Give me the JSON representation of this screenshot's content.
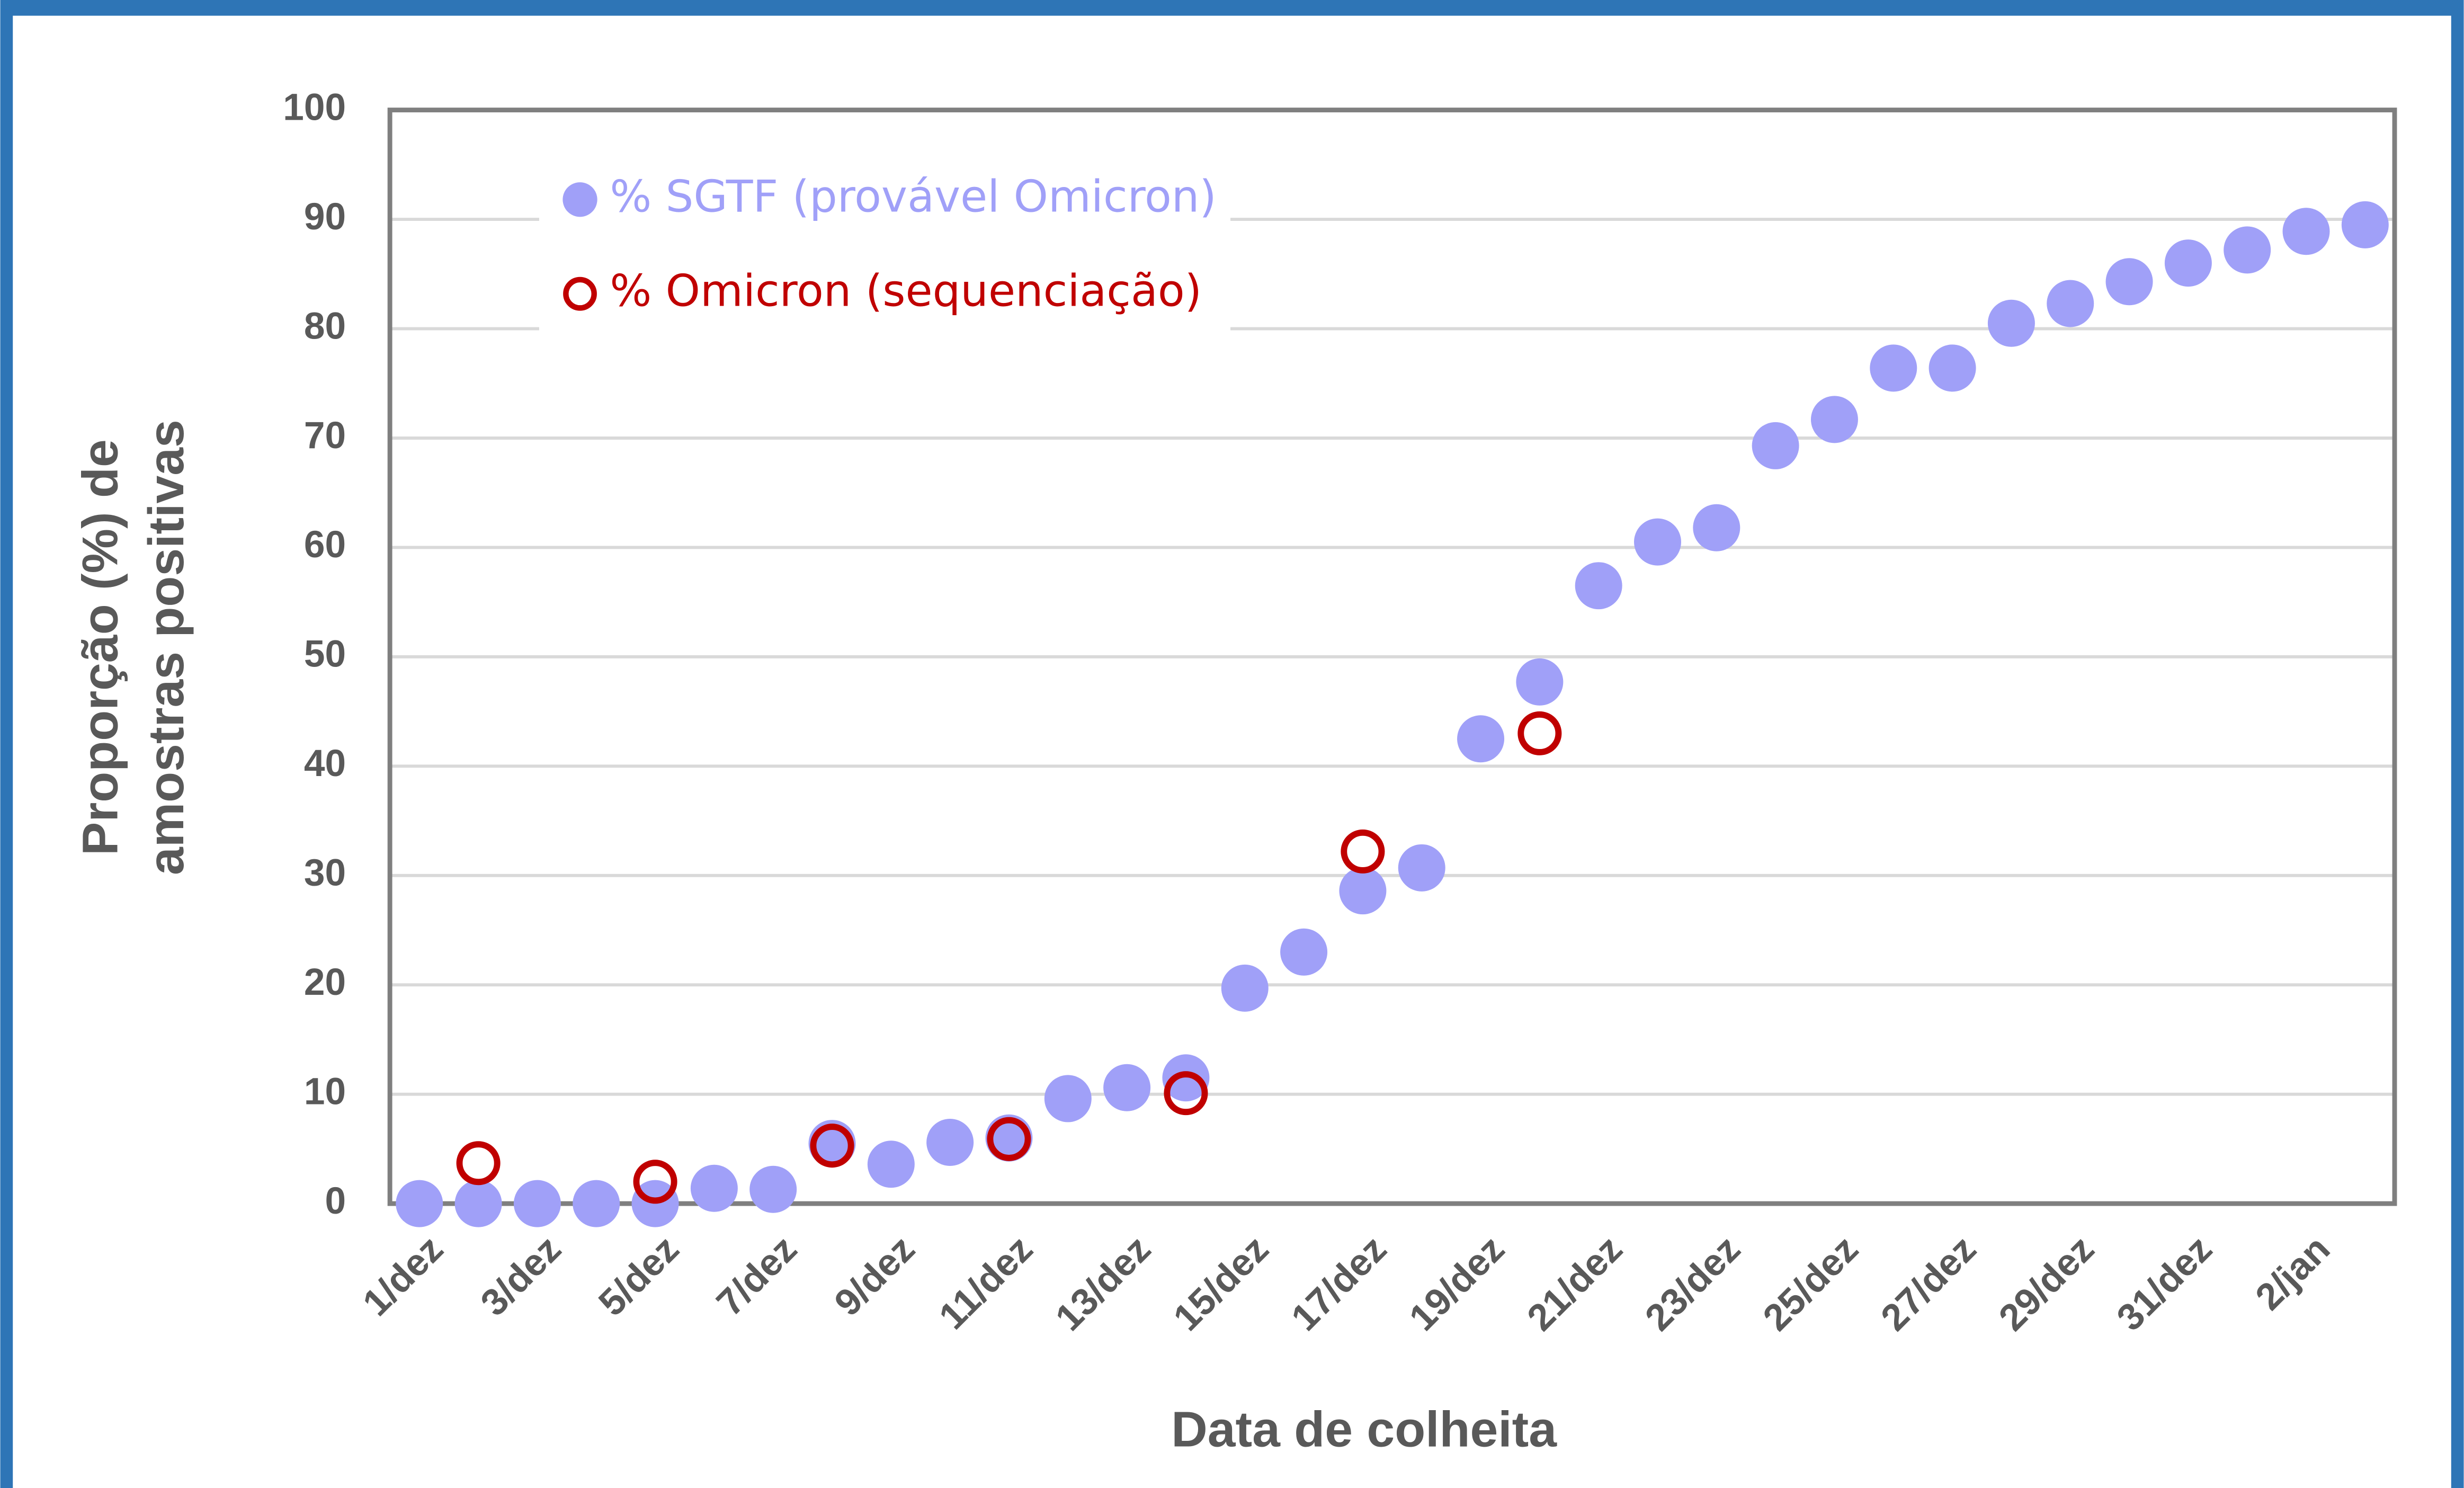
{
  "chart_data": {
    "type": "scatter",
    "x_label": "Data de colheita",
    "y_label": [
      "Proporção (%)  de",
      "amostras positivas"
    ],
    "categories": [
      "1/dez",
      null,
      "3/dez",
      null,
      "5/dez",
      null,
      "7/dez",
      null,
      "9/dez",
      null,
      "11/dez",
      null,
      "13/dez",
      null,
      "15/dez",
      null,
      "17/dez",
      null,
      "19/dez",
      null,
      "21/dez",
      null,
      "23/dez",
      null,
      "25/dez",
      null,
      "27/dez",
      null,
      "29/dez",
      null,
      "31/dez",
      null,
      "2/jan",
      null
    ],
    "series": [
      {
        "name": "% SGTF (provável Omicron)",
        "color": "#a0a0f8",
        "marker": "filled",
        "values": [
          0,
          0,
          0,
          0,
          0,
          1.4,
          1.3,
          5.5,
          3.6,
          5.6,
          6,
          9.6,
          10.6,
          11.5,
          19.7,
          23,
          28.6,
          30.7,
          42.5,
          47.7,
          56.5,
          60.5,
          61.8,
          69.3,
          71.7,
          76.4,
          76.4,
          80.5,
          82.3,
          84.3,
          86,
          87.2,
          88.9,
          89.5
        ]
      },
      {
        "name": "% Omicron (sequenciação)",
        "color": "#c00000",
        "marker": "open",
        "values": [
          null,
          3.7,
          null,
          null,
          2.0,
          null,
          null,
          5.3,
          null,
          null,
          5.9,
          null,
          null,
          10.1,
          null,
          null,
          32.2,
          null,
          null,
          43,
          null,
          null,
          null,
          null,
          null,
          null,
          null,
          null,
          null,
          null,
          null,
          null,
          null,
          null
        ]
      }
    ],
    "ylim": [
      0,
      100
    ],
    "yticks": [
      0,
      10,
      20,
      30,
      40,
      50,
      60,
      70,
      80,
      90,
      100
    ],
    "grid": true,
    "legend": "upper left"
  }
}
